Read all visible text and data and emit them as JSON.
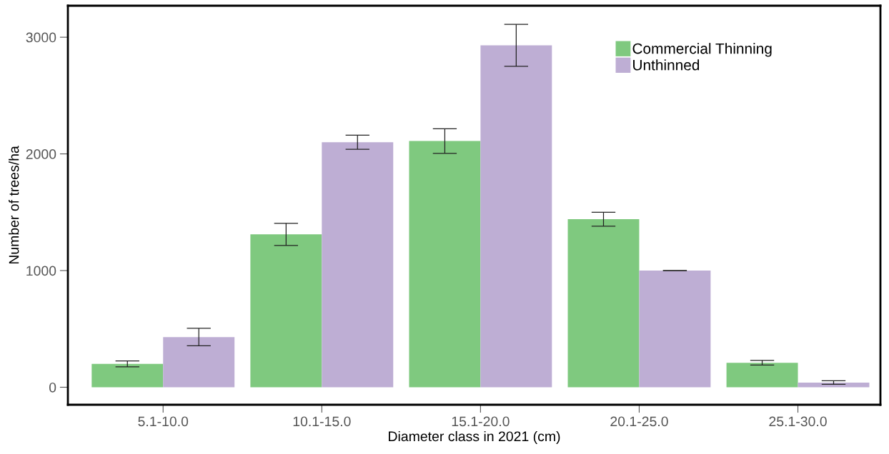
{
  "chart_data": {
    "type": "bar",
    "xlabel": "Diameter class in 2021 (cm)",
    "ylabel": "Number of trees/ha",
    "categories": [
      "5.1-10.0",
      "10.1-15.0",
      "15.1-20.0",
      "20.1-25.0",
      "25.1-30.0"
    ],
    "series": [
      {
        "name": "Commercial Thinning",
        "color": "#7fc97f",
        "values": [
          200,
          1310,
          2110,
          1440,
          210
        ],
        "errors": [
          25,
          95,
          105,
          60,
          20
        ]
      },
      {
        "name": "Unthinned",
        "color": "#beaed4",
        "values": [
          430,
          2100,
          2930,
          1000,
          40
        ],
        "errors": [
          75,
          60,
          180,
          0,
          15
        ]
      }
    ],
    "ylim": [
      -150,
      3270
    ],
    "yticks": [
      0,
      1000,
      2000,
      3000
    ],
    "grid": false,
    "legend": "top right"
  }
}
